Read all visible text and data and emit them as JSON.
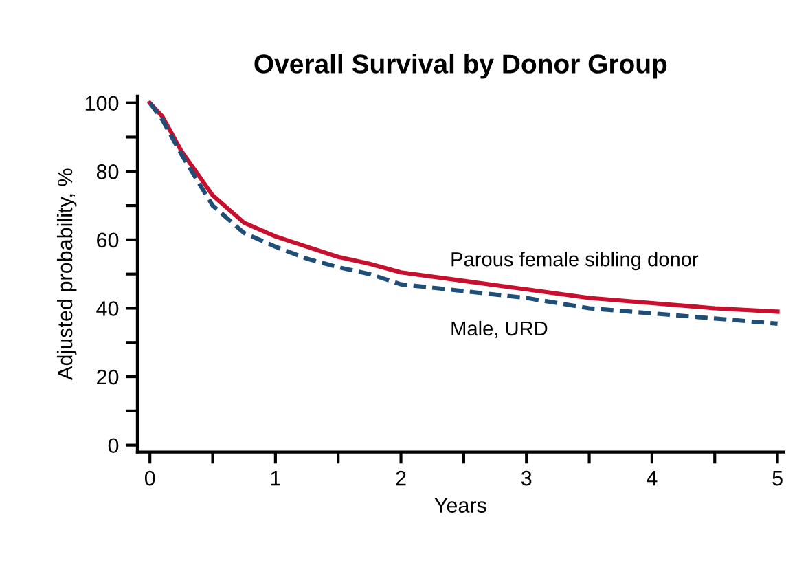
{
  "chart_data": {
    "type": "line",
    "title": "Overall Survival by Donor Group",
    "xlabel": "Years",
    "ylabel": "Adjusted probability, %",
    "x": [
      0,
      0.1,
      0.25,
      0.5,
      0.75,
      1,
      1.25,
      1.5,
      1.75,
      2,
      2.5,
      3,
      3.5,
      4,
      4.5,
      5
    ],
    "series": [
      {
        "name": "Parous female sibling donor",
        "color": "#c8102e",
        "line_style": "solid",
        "values": [
          100,
          96,
          86,
          73,
          65,
          61,
          58,
          55,
          53,
          50.5,
          48,
          45.5,
          43,
          41.5,
          40,
          39
        ]
      },
      {
        "name": "Male, URD",
        "color": "#1f4e79",
        "line_style": "dashed",
        "values": [
          100,
          95,
          85,
          70,
          62,
          58,
          54.5,
          52,
          50,
          47,
          45,
          43,
          40,
          38.5,
          37,
          35.5
        ]
      }
    ],
    "xlim": [
      -0.1,
      5.05
    ],
    "ylim": [
      -2,
      102
    ],
    "xticks": [
      0,
      {
        "value": 0.5,
        "label": null
      },
      1,
      {
        "value": 1.5,
        "label": null
      },
      2,
      {
        "value": 2.5,
        "label": null
      },
      3,
      {
        "value": 3.5,
        "label": null
      },
      4,
      {
        "value": 4.5,
        "label": null
      },
      5
    ],
    "yticks": [
      0,
      {
        "value": 10,
        "label": null
      },
      20,
      {
        "value": 30,
        "label": null
      },
      40,
      {
        "value": 50,
        "label": null
      },
      60,
      {
        "value": 70,
        "label": null
      },
      80,
      {
        "value": 90,
        "label": null
      },
      100
    ],
    "grid": false,
    "legend": false
  }
}
